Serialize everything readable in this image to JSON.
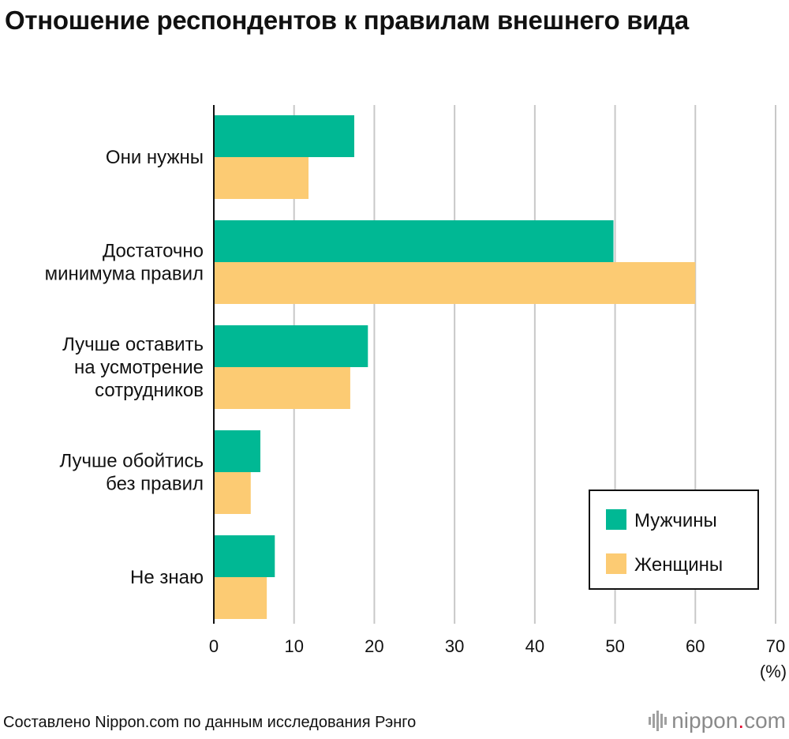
{
  "chart_data": {
    "type": "bar",
    "orientation": "horizontal",
    "title": "Отношение респондентов к правилам внешнего вида",
    "categories": [
      [
        "Они нужны"
      ],
      [
        "Достаточно",
        "минимума правил"
      ],
      [
        "Лучше оставить",
        "на усмотрение",
        "сотрудников"
      ],
      [
        "Лучше обойтись",
        "без правил"
      ],
      [
        "Не знаю"
      ]
    ],
    "series": [
      {
        "name": "Мужчины",
        "color": "#00b894",
        "values": [
          17.5,
          49.8,
          19.2,
          5.8,
          7.6
        ]
      },
      {
        "name": "Женщины",
        "color": "#fccb73",
        "values": [
          11.8,
          60.0,
          17.0,
          4.6,
          6.6
        ]
      }
    ],
    "xlim": [
      0,
      70
    ],
    "xticks": [
      0,
      10,
      20,
      30,
      40,
      50,
      60,
      70
    ],
    "xunit": "(%)",
    "grid": true,
    "legend_position": "bottom-right"
  },
  "footer": {
    "source": "Составлено Nippon.com по данным исследования Рэнго",
    "brand_main": "nippon",
    "brand_dot": ".",
    "brand_tld": "com"
  }
}
